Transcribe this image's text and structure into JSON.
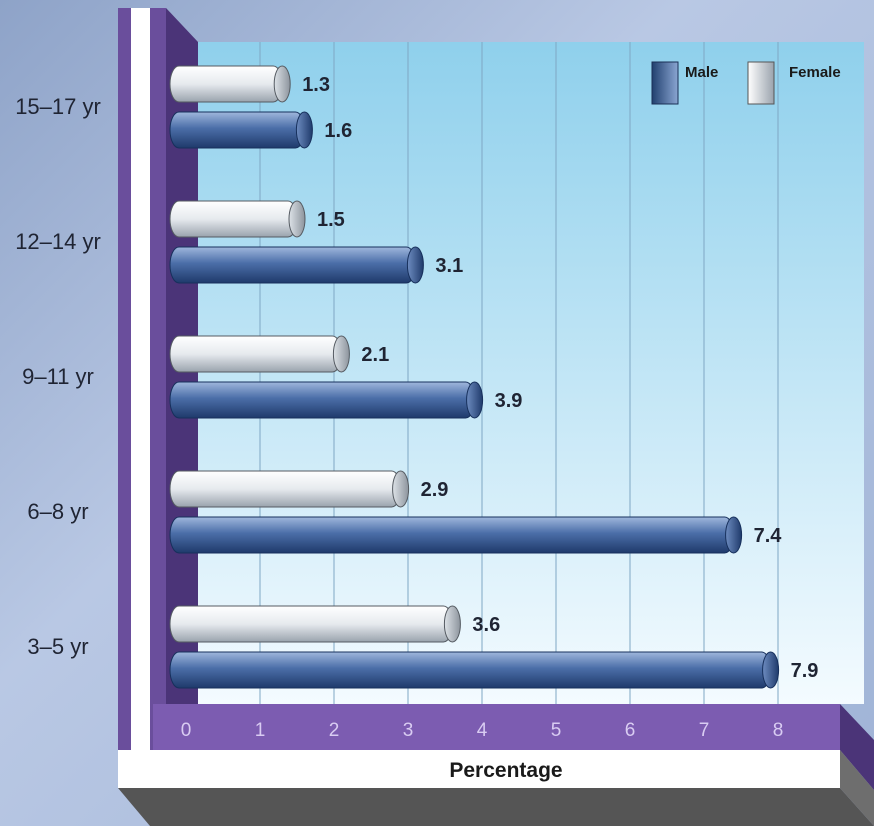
{
  "chart_data": {
    "type": "bar",
    "orientation": "horizontal",
    "categories": [
      "15–17 yr",
      "12–14 yr",
      "9–11 yr",
      "6–8 yr",
      "3–5 yr"
    ],
    "series": [
      {
        "name": "Female",
        "color": "#d8dde3",
        "values": [
          1.3,
          1.5,
          2.1,
          2.9,
          3.6
        ]
      },
      {
        "name": "Male",
        "color": "#3d5f9a",
        "values": [
          1.6,
          3.1,
          3.9,
          7.4,
          7.9
        ]
      }
    ],
    "x_ticks": [
      "0",
      "1",
      "2",
      "3",
      "4",
      "5",
      "6",
      "7",
      "8"
    ],
    "xlim": [
      0,
      8.6
    ],
    "xlabel": "Percentage",
    "grid": true,
    "legend": {
      "placement": "top-right",
      "order": [
        "Male",
        "Female"
      ]
    }
  }
}
